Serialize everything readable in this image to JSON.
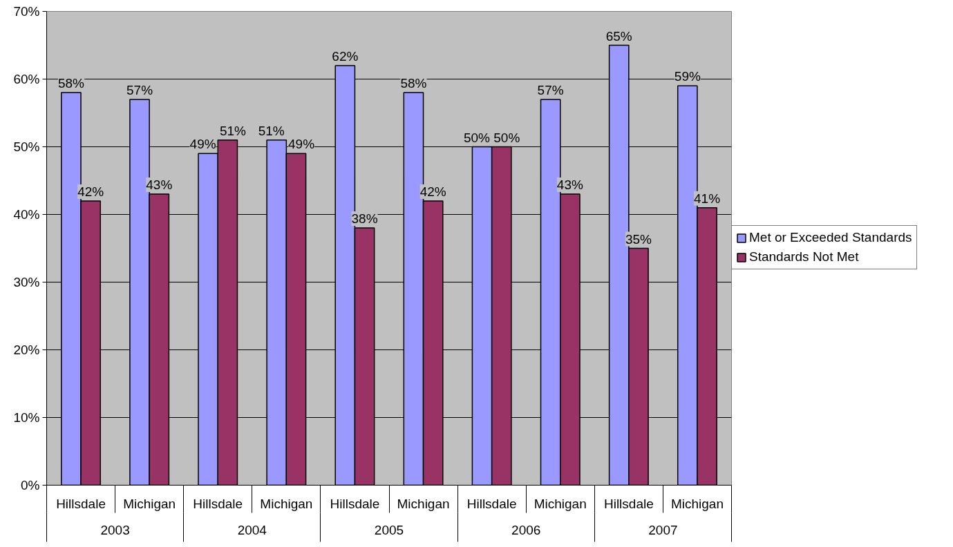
{
  "chart_data": {
    "type": "bar",
    "categories": [
      "Hillsdale",
      "Michigan",
      "Hillsdale",
      "Michigan",
      "Hillsdale",
      "Michigan",
      "Hillsdale",
      "Michigan",
      "Hillsdale",
      "Michigan"
    ],
    "annotations": [
      "2003",
      "2004",
      "2005",
      "2006",
      "2007"
    ],
    "series": [
      {
        "name": "Met or Exceeded Standards",
        "color": "#9999ff",
        "values": [
          58,
          57,
          49,
          51,
          62,
          58,
          50,
          57,
          65,
          59
        ],
        "value_labels": [
          "58%",
          "57%",
          "49%",
          "51%",
          "62%",
          "58%",
          "50%",
          "57%",
          "65%",
          "59%"
        ]
      },
      {
        "name": "Standards Not Met",
        "color": "#993366",
        "values": [
          42,
          43,
          51,
          49,
          38,
          42,
          50,
          43,
          35,
          41
        ],
        "value_labels": [
          "42%",
          "43%",
          "51%",
          "49%",
          "38%",
          "42%",
          "50%",
          "43%",
          "35%",
          "41%"
        ]
      }
    ],
    "ylim": [
      0,
      70
    ],
    "yticks": [
      {
        "value": 0,
        "label": "0%"
      },
      {
        "value": 10,
        "label": "10%"
      },
      {
        "value": 20,
        "label": "20%"
      },
      {
        "value": 30,
        "label": "30%"
      },
      {
        "value": 40,
        "label": "40%"
      },
      {
        "value": 50,
        "label": "50%"
      },
      {
        "value": 60,
        "label": "60%"
      },
      {
        "value": 70,
        "label": "70%"
      }
    ],
    "grid": "y",
    "legend": "right"
  }
}
